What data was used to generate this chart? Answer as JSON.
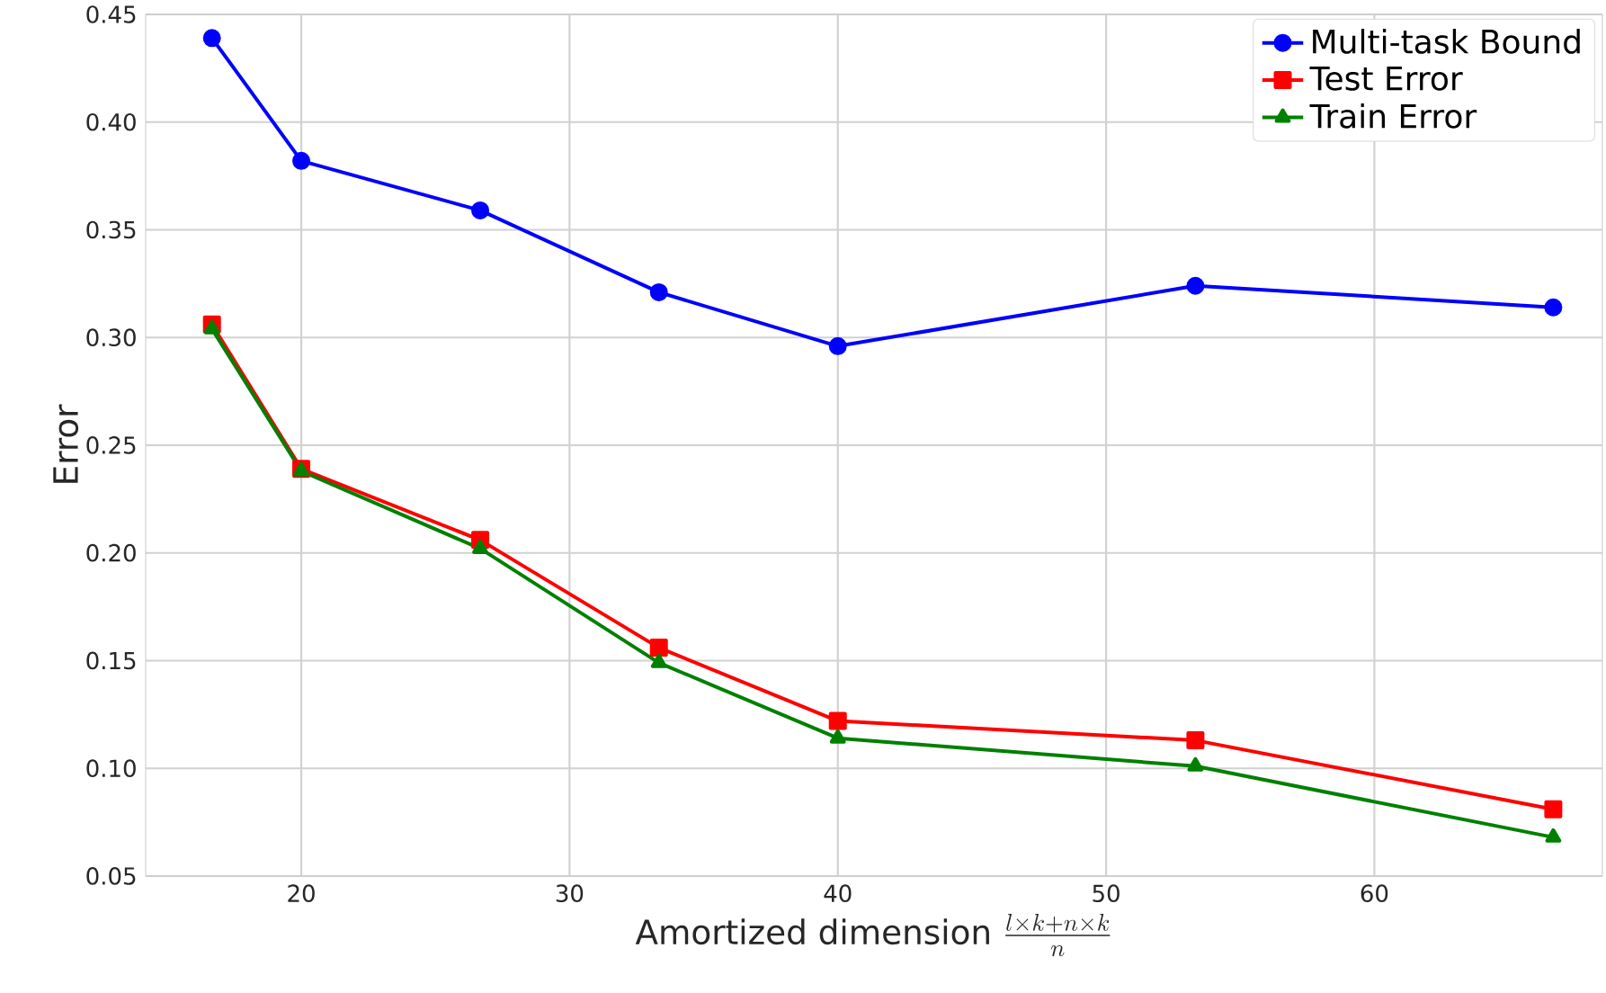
{
  "chart_data": {
    "type": "line",
    "xlabel": "\\text{Amortized dimension } \\frac{l\\times k+n\\times k}{n}",
    "ylabel": "Error",
    "x": [
      16.67,
      20,
      26.67,
      33.33,
      40,
      53.33,
      66.67
    ],
    "series": [
      {
        "name": "Multi-task Bound",
        "color": "#0000ff",
        "marker": "circle",
        "values": [
          0.439,
          0.382,
          0.359,
          0.321,
          0.296,
          0.324,
          0.314
        ]
      },
      {
        "name": "Test Error",
        "color": "#ff0000",
        "marker": "square",
        "values": [
          0.306,
          0.239,
          0.206,
          0.156,
          0.122,
          0.113,
          0.081
        ]
      },
      {
        "name": "Train Error",
        "color": "#008000",
        "marker": "triangle",
        "values": [
          0.304,
          0.238,
          0.202,
          0.149,
          0.114,
          0.101,
          0.068
        ]
      }
    ],
    "xlim": [
      14.2,
      68.5
    ],
    "ylim": [
      0.05,
      0.45
    ],
    "xticks": [
      20,
      30,
      40,
      50,
      60
    ],
    "yticks": [
      0.05,
      {
        "value": 0.1,
        "label": "0.10"
      },
      0.15,
      {
        "value": 0.2,
        "label": "0.20"
      },
      0.25,
      {
        "value": 0.3,
        "label": "0.30"
      },
      0.35,
      {
        "value": 0.4,
        "label": "0.40"
      },
      0.45
    ],
    "grid": true,
    "legend": "top right",
    "line_style": "solid"
  }
}
